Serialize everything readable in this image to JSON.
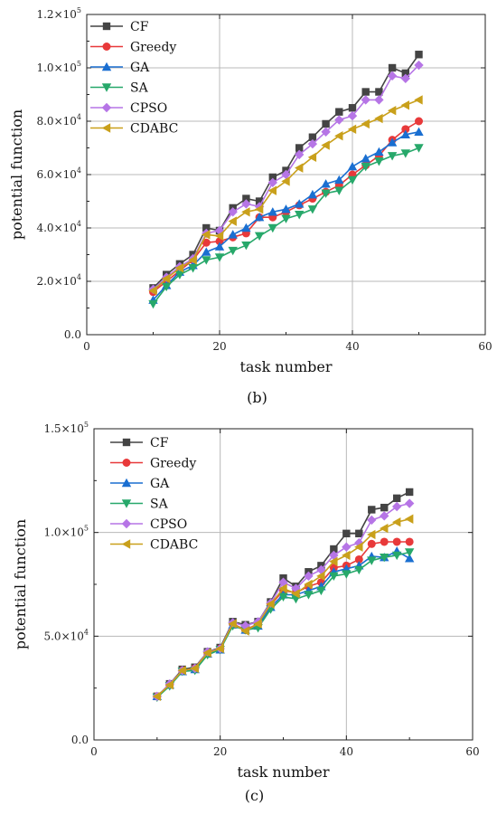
{
  "chart_data": [
    {
      "type": "line",
      "panel_label": "(b)",
      "xlabel": "task number",
      "ylabel": "potential function",
      "xlim": [
        0,
        60
      ],
      "ylim": [
        0,
        120000
      ],
      "x_ticks": [
        0,
        20,
        40,
        60
      ],
      "x_tick_labels": [
        "0",
        "20",
        "40",
        "60"
      ],
      "y_ticks": [
        0,
        20000,
        40000,
        60000,
        80000,
        100000,
        120000
      ],
      "y_tick_labels": [
        {
          "mantissa": "0.0",
          "exp": ""
        },
        {
          "mantissa": "2.0×10",
          "exp": "4"
        },
        {
          "mantissa": "4.0×10",
          "exp": "4"
        },
        {
          "mantissa": "6.0×10",
          "exp": "4"
        },
        {
          "mantissa": "8.0×10",
          "exp": "4"
        },
        {
          "mantissa": "1.0×10",
          "exp": "5"
        },
        {
          "mantissa": "1.2×10",
          "exp": "5"
        }
      ],
      "grid": true,
      "legend_position": "top-left",
      "x": [
        10,
        12,
        14,
        16,
        18,
        20,
        22,
        24,
        26,
        28,
        30,
        32,
        34,
        36,
        38,
        40,
        42,
        44,
        46,
        48,
        50
      ],
      "series": [
        {
          "name": "CF",
          "color": "#444444",
          "marker": "square",
          "values": [
            17500,
            22500,
            26500,
            30000,
            40000,
            39000,
            47500,
            51000,
            50000,
            59000,
            61500,
            70000,
            74000,
            79000,
            83500,
            85000,
            91000,
            91000,
            100000,
            98000,
            105000
          ]
        },
        {
          "name": "Greedy",
          "color": "#e8393a",
          "marker": "circle",
          "values": [
            16000,
            20000,
            24000,
            28000,
            34500,
            35000,
            36500,
            38000,
            44000,
            44000,
            46000,
            48500,
            51000,
            53500,
            56000,
            60000,
            63500,
            67000,
            73000,
            77000,
            80000
          ]
        },
        {
          "name": "GA",
          "color": "#1a6fd1",
          "marker": "triangle-up",
          "values": [
            13000,
            18500,
            23500,
            26000,
            31000,
            33000,
            37500,
            40000,
            44000,
            46000,
            47000,
            49000,
            52500,
            56500,
            58000,
            63000,
            66000,
            68500,
            72000,
            75000,
            76000
          ]
        },
        {
          "name": "SA",
          "color": "#27a86a",
          "marker": "triangle-down",
          "values": [
            11500,
            18000,
            22500,
            25000,
            28000,
            29000,
            31500,
            33500,
            37000,
            40000,
            43500,
            45000,
            47000,
            53000,
            54000,
            58000,
            63000,
            65000,
            67000,
            68000,
            70000
          ]
        },
        {
          "name": "CPSO",
          "color": "#b675e6",
          "marker": "diamond",
          "values": [
            17000,
            21500,
            25500,
            28500,
            38000,
            39000,
            46000,
            49000,
            48000,
            57000,
            60000,
            67500,
            71500,
            76000,
            80500,
            82000,
            88000,
            88000,
            97000,
            96000,
            101000
          ]
        },
        {
          "name": "CDABC",
          "color": "#c9a01b",
          "marker": "triangle-left",
          "values": [
            16500,
            21000,
            25000,
            28000,
            37500,
            37000,
            42500,
            46000,
            47000,
            54000,
            57500,
            62500,
            66500,
            71000,
            74500,
            77000,
            79000,
            81000,
            84000,
            86000,
            88000
          ]
        }
      ]
    },
    {
      "type": "line",
      "panel_label": "(c)",
      "xlabel": "task number",
      "ylabel": "potential function",
      "xlim": [
        0,
        60
      ],
      "ylim": [
        0,
        150000
      ],
      "x_ticks": [
        0,
        20,
        40,
        60
      ],
      "x_tick_labels": [
        "0",
        "20",
        "40",
        "60"
      ],
      "y_ticks": [
        0,
        50000,
        100000,
        150000
      ],
      "y_tick_labels": [
        {
          "mantissa": "0.0",
          "exp": ""
        },
        {
          "mantissa": "5.0×10",
          "exp": "4"
        },
        {
          "mantissa": "1.0×10",
          "exp": "5"
        },
        {
          "mantissa": "1.5×10",
          "exp": "5"
        }
      ],
      "grid": true,
      "legend_position": "top-left",
      "x": [
        10,
        12,
        14,
        16,
        18,
        20,
        22,
        24,
        26,
        28,
        30,
        32,
        34,
        36,
        38,
        40,
        42,
        44,
        46,
        48,
        50
      ],
      "series": [
        {
          "name": "CF",
          "color": "#444444",
          "marker": "square",
          "values": [
            21000,
            27000,
            34000,
            35000,
            42500,
            44500,
            57000,
            55500,
            57000,
            66500,
            78000,
            74000,
            81000,
            84000,
            92000,
            99500,
            99500,
            111000,
            112000,
            116500,
            119500
          ]
        },
        {
          "name": "Greedy",
          "color": "#e8393a",
          "marker": "circle",
          "values": [
            21000,
            26500,
            33500,
            34500,
            42000,
            44000,
            56000,
            53000,
            56000,
            65000,
            72000,
            71000,
            74000,
            76000,
            83000,
            84000,
            87000,
            94500,
            95500,
            95500,
            95500
          ]
        },
        {
          "name": "GA",
          "color": "#1a6fd1",
          "marker": "triangle-up",
          "values": [
            21000,
            26500,
            33000,
            34000,
            41500,
            43500,
            55500,
            53000,
            55000,
            64000,
            70000,
            70000,
            72000,
            74000,
            81000,
            82500,
            84000,
            88500,
            88000,
            91000,
            87500
          ]
        },
        {
          "name": "SA",
          "color": "#27a86a",
          "marker": "triangle-down",
          "values": [
            20500,
            26000,
            33000,
            33500,
            41000,
            43500,
            55000,
            53000,
            54000,
            63000,
            69000,
            68000,
            70000,
            72000,
            79000,
            80000,
            82000,
            86500,
            88000,
            89000,
            90500
          ]
        },
        {
          "name": "CPSO",
          "color": "#b675e6",
          "marker": "diamond",
          "values": [
            21000,
            27000,
            33500,
            34500,
            42500,
            44000,
            56500,
            55000,
            57000,
            66000,
            76000,
            73000,
            79000,
            82000,
            89000,
            93000,
            95000,
            106000,
            108000,
            112500,
            114000
          ]
        },
        {
          "name": "CDABC",
          "color": "#c9a01b",
          "marker": "triangle-left",
          "values": [
            21000,
            26500,
            33500,
            34500,
            42000,
            44000,
            56000,
            52500,
            56000,
            65500,
            73000,
            70500,
            75000,
            79000,
            86000,
            89000,
            93000,
            99000,
            102000,
            105000,
            106500
          ]
        }
      ]
    }
  ]
}
